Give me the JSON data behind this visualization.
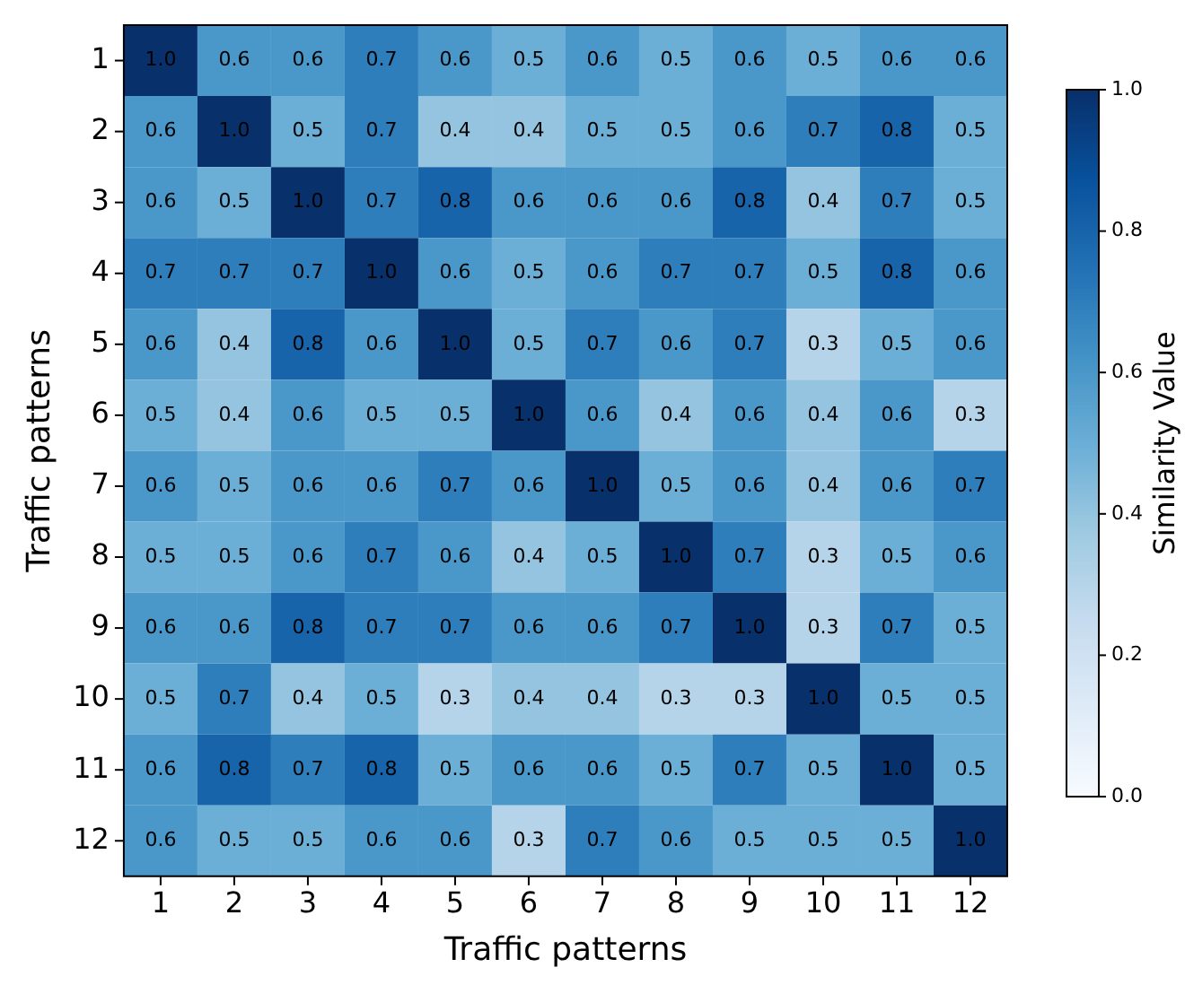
{
  "chart_data": {
    "type": "heatmap",
    "xlabel": "Traffic patterns",
    "ylabel": "Traffic patterns",
    "clabel": "Similarity Value",
    "categories": [
      "1",
      "2",
      "3",
      "4",
      "5",
      "6",
      "7",
      "8",
      "9",
      "10",
      "11",
      "12"
    ],
    "y_categories": [
      "1",
      "2",
      "3",
      "4",
      "5",
      "6",
      "7",
      "8",
      "9",
      "10",
      "11",
      "12"
    ],
    "cells": [
      [
        1.0,
        0.6,
        0.6,
        0.7,
        0.6,
        0.5,
        0.6,
        0.5,
        0.6,
        0.5,
        0.6,
        0.6
      ],
      [
        0.6,
        1.0,
        0.5,
        0.7,
        0.4,
        0.4,
        0.5,
        0.5,
        0.6,
        0.7,
        0.8,
        0.5
      ],
      [
        0.6,
        0.5,
        1.0,
        0.7,
        0.8,
        0.6,
        0.6,
        0.6,
        0.8,
        0.4,
        0.7,
        0.5
      ],
      [
        0.7,
        0.7,
        0.7,
        1.0,
        0.6,
        0.5,
        0.6,
        0.7,
        0.7,
        0.5,
        0.8,
        0.6
      ],
      [
        0.6,
        0.4,
        0.8,
        0.6,
        1.0,
        0.5,
        0.7,
        0.6,
        0.7,
        0.3,
        0.5,
        0.6
      ],
      [
        0.5,
        0.4,
        0.6,
        0.5,
        0.5,
        1.0,
        0.6,
        0.4,
        0.6,
        0.4,
        0.6,
        0.3
      ],
      [
        0.6,
        0.5,
        0.6,
        0.6,
        0.7,
        0.6,
        1.0,
        0.5,
        0.6,
        0.4,
        0.6,
        0.7
      ],
      [
        0.5,
        0.5,
        0.6,
        0.7,
        0.6,
        0.4,
        0.5,
        1.0,
        0.7,
        0.3,
        0.5,
        0.6
      ],
      [
        0.6,
        0.6,
        0.8,
        0.7,
        0.7,
        0.6,
        0.6,
        0.7,
        1.0,
        0.3,
        0.7,
        0.5
      ],
      [
        0.5,
        0.7,
        0.4,
        0.5,
        0.3,
        0.4,
        0.4,
        0.3,
        0.3,
        1.0,
        0.5,
        0.5
      ],
      [
        0.6,
        0.8,
        0.7,
        0.8,
        0.5,
        0.6,
        0.6,
        0.5,
        0.7,
        0.5,
        1.0,
        0.5
      ],
      [
        0.6,
        0.5,
        0.5,
        0.6,
        0.6,
        0.3,
        0.7,
        0.6,
        0.5,
        0.5,
        0.5,
        1.0
      ]
    ],
    "cell_labels": [
      [
        "1.0",
        "0.6",
        "0.6",
        "0.7",
        "0.6",
        "0.5",
        "0.6",
        "0.5",
        "0.6",
        "0.5",
        "0.6",
        "0.6"
      ],
      [
        "0.6",
        "1.0",
        "0.5",
        "0.7",
        "0.4",
        "0.4",
        "0.5",
        "0.5",
        "0.6",
        "0.7",
        "0.8",
        "0.5"
      ],
      [
        "0.6",
        "0.5",
        "1.0",
        "0.7",
        "0.8",
        "0.6",
        "0.6",
        "0.6",
        "0.8",
        "0.4",
        "0.7",
        "0.5"
      ],
      [
        "0.7",
        "0.7",
        "0.7",
        "1.0",
        "0.6",
        "0.5",
        "0.6",
        "0.7",
        "0.7",
        "0.5",
        "0.8",
        "0.6"
      ],
      [
        "0.6",
        "0.4",
        "0.8",
        "0.6",
        "1.0",
        "0.5",
        "0.7",
        "0.6",
        "0.7",
        "0.3",
        "0.5",
        "0.6"
      ],
      [
        "0.5",
        "0.4",
        "0.6",
        "0.5",
        "0.5",
        "1.0",
        "0.6",
        "0.4",
        "0.6",
        "0.4",
        "0.6",
        "0.3"
      ],
      [
        "0.6",
        "0.5",
        "0.6",
        "0.6",
        "0.7",
        "0.6",
        "1.0",
        "0.5",
        "0.6",
        "0.4",
        "0.6",
        "0.7"
      ],
      [
        "0.5",
        "0.5",
        "0.6",
        "0.7",
        "0.6",
        "0.4",
        "0.5",
        "1.0",
        "0.7",
        "0.3",
        "0.5",
        "0.6"
      ],
      [
        "0.6",
        "0.6",
        "0.8",
        "0.7",
        "0.7",
        "0.6",
        "0.6",
        "0.7",
        "1.0",
        "0.3",
        "0.7",
        "0.5"
      ],
      [
        "0.5",
        "0.7",
        "0.4",
        "0.5",
        "0.3",
        "0.4",
        "0.4",
        "0.3",
        "0.3",
        "1.0",
        "0.5",
        "0.5"
      ],
      [
        "0.6",
        "0.8",
        "0.7",
        "0.8",
        "0.5",
        "0.6",
        "0.6",
        "0.5",
        "0.7",
        "0.5",
        "1.0",
        "0.5"
      ],
      [
        "0.6",
        "0.5",
        "0.5",
        "0.6",
        "0.6",
        "0.3",
        "0.7",
        "0.6",
        "0.5",
        "0.5",
        "0.5",
        "1.0"
      ]
    ],
    "data_labels": true,
    "clim": [
      0,
      1
    ],
    "cticks": [
      {
        "value": 0,
        "label": "0.0"
      },
      {
        "value": 0.2,
        "label": "0.2"
      },
      {
        "value": 0.4,
        "label": "0.4"
      },
      {
        "value": 0.6,
        "label": "0.6"
      },
      {
        "value": 0.8,
        "label": "0.8"
      },
      {
        "value": 1,
        "label": "1.0"
      }
    ]
  }
}
